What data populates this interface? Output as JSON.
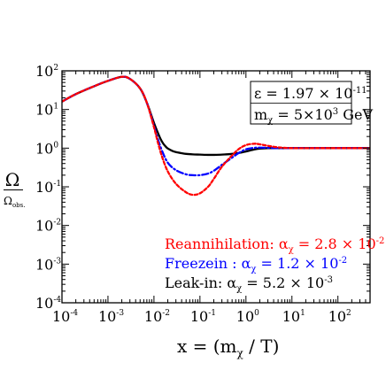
{
  "chart_data": {
    "type": "line",
    "xlabel": {
      "base": "x = (m",
      "sub": "χ",
      "tail": " / T)"
    },
    "ylabel": {
      "num": "Ω",
      "den": "Ω",
      "den_sub": "obs."
    },
    "xscale": "log",
    "yscale": "log",
    "xlim": [
      0.0001,
      500
    ],
    "ylim": [
      0.0001,
      100
    ],
    "grid": false,
    "x_ticks": [
      {
        "base": "10",
        "exp": "-4"
      },
      {
        "base": "10",
        "exp": "-3"
      },
      {
        "base": "10",
        "exp": "-2"
      },
      {
        "base": "10",
        "exp": "-1"
      },
      {
        "base": "10",
        "exp": "0"
      },
      {
        "base": "10",
        "exp": "1"
      },
      {
        "base": "10",
        "exp": "2"
      }
    ],
    "y_ticks": [
      {
        "base": "10",
        "exp": "-4"
      },
      {
        "base": "10",
        "exp": "-3"
      },
      {
        "base": "10",
        "exp": "-2"
      },
      {
        "base": "10",
        "exp": "-1"
      },
      {
        "base": "10",
        "exp": "0"
      },
      {
        "base": "10",
        "exp": "1"
      },
      {
        "base": "10",
        "exp": "2"
      }
    ],
    "params_box": {
      "line1": {
        "pre": "ε = 1.97 × 10",
        "sup": "-11"
      },
      "line2": {
        "pre": "m",
        "sub": "χ",
        "mid": " = 5×10",
        "sup": "3",
        "post": " GeV"
      }
    },
    "series": [
      {
        "color": "#000000",
        "dash": "solid",
        "x": [
          0.0001,
          0.0002,
          0.0005,
          0.001,
          0.002,
          0.003,
          0.005,
          0.007,
          0.01,
          0.012,
          0.014,
          0.016,
          0.018,
          0.02,
          0.025,
          0.03,
          0.04,
          0.05,
          0.07,
          0.1,
          0.15,
          0.2,
          0.3,
          0.5,
          0.7,
          1,
          1.5,
          2,
          3,
          5,
          10,
          30,
          100,
          500
        ],
        "y": [
          16,
          25,
          40,
          55,
          70,
          62,
          35,
          15,
          4.5,
          2.6,
          1.7,
          1.3,
          1.1,
          0.98,
          0.85,
          0.79,
          0.74,
          0.71,
          0.69,
          0.68,
          0.67,
          0.67,
          0.68,
          0.71,
          0.75,
          0.82,
          0.92,
          0.97,
          1.0,
          1.0,
          1.0,
          1.0,
          1.0,
          1.0
        ]
      },
      {
        "label": {
          "pre": "Reannihilation: α",
          "sub": "χ",
          "mid": " = 2.8 × 10",
          "sup": "-2"
        },
        "color": "#ff0000",
        "dash": "short-dash",
        "x": [
          0.0001,
          0.0002,
          0.0005,
          0.001,
          0.002,
          0.003,
          0.005,
          0.007,
          0.01,
          0.012,
          0.015,
          0.02,
          0.03,
          0.05,
          0.07,
          0.1,
          0.15,
          0.2,
          0.3,
          0.5,
          0.7,
          1,
          1.5,
          2,
          3,
          5,
          10,
          30,
          100,
          500
        ],
        "y": [
          16,
          25,
          40,
          55,
          70,
          62,
          35,
          15,
          3.5,
          1.5,
          0.6,
          0.25,
          0.12,
          0.072,
          0.062,
          0.068,
          0.1,
          0.16,
          0.33,
          0.65,
          0.95,
          1.2,
          1.3,
          1.26,
          1.15,
          1.05,
          1.0,
          1.0,
          1.0,
          1.0
        ]
      },
      {
        "label": {
          "pre": "Freezein : α",
          "sub": "χ",
          "mid": " = 1.2 × 10",
          "sup": "-2"
        },
        "color": "#0000ff",
        "dash": "dash-dot",
        "x": [
          0.0001,
          0.0002,
          0.0005,
          0.001,
          0.002,
          0.003,
          0.005,
          0.007,
          0.01,
          0.012,
          0.015,
          0.02,
          0.03,
          0.05,
          0.07,
          0.1,
          0.15,
          0.2,
          0.3,
          0.5,
          0.7,
          1,
          1.5,
          2,
          3,
          5,
          10,
          30,
          100,
          500
        ],
        "y": [
          16,
          25,
          40,
          55,
          70,
          62,
          35,
          15,
          3.8,
          1.8,
          0.85,
          0.42,
          0.27,
          0.21,
          0.2,
          0.2,
          0.22,
          0.26,
          0.37,
          0.57,
          0.75,
          0.93,
          1.02,
          1.03,
          1.02,
          1.0,
          1.0,
          1.0,
          1.0,
          1.0
        ]
      },
      {
        "label": {
          "pre": "Leak-in: α",
          "sub": "χ",
          "mid": " = 5.2 × 10",
          "sup": "-3"
        },
        "color": "#000000",
        "dash": "solid",
        "x": [],
        "y": []
      }
    ]
  }
}
